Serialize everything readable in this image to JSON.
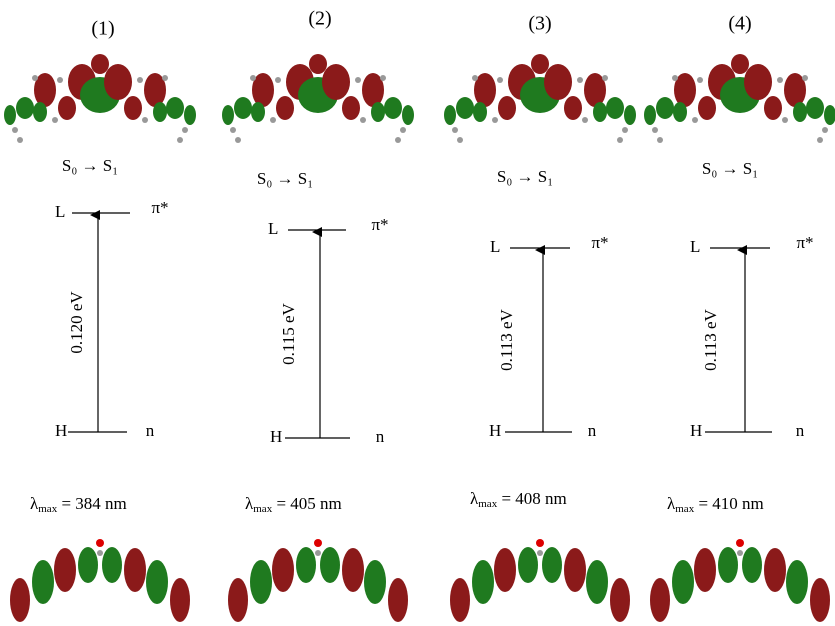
{
  "panels": [
    {
      "label": "(1)",
      "transition": "S₀ → S₁",
      "lumo": "L",
      "lumo_type": "π*",
      "homo": "H",
      "homo_type": "n",
      "gap": "0.120 eV",
      "lambda": "λ",
      "lambda_sub": "max",
      "lambda_value": " = 384 nm"
    },
    {
      "label": "(2)",
      "transition": "S₀ → S₁",
      "lumo": "L",
      "lumo_type": "π*",
      "homo": "H",
      "homo_type": "n",
      "gap": "0.115 eV",
      "lambda": "λ",
      "lambda_sub": "max",
      "lambda_value": " = 405 nm"
    },
    {
      "label": "(3)",
      "transition": "S₀ → S₁",
      "lumo": "L",
      "lumo_type": "π*",
      "homo": "H",
      "homo_type": "n",
      "gap": "0.113 eV",
      "lambda": "λ",
      "lambda_sub": "max",
      "lambda_value": " = 408 nm"
    },
    {
      "label": "(4)",
      "transition": "S₀ → S₁",
      "lumo": "L",
      "lumo_type": "π*",
      "homo": "H",
      "homo_type": "n",
      "gap": "0.113 eV",
      "lambda": "λ",
      "lambda_sub": "max",
      "lambda_value": " = 410 nm"
    }
  ]
}
